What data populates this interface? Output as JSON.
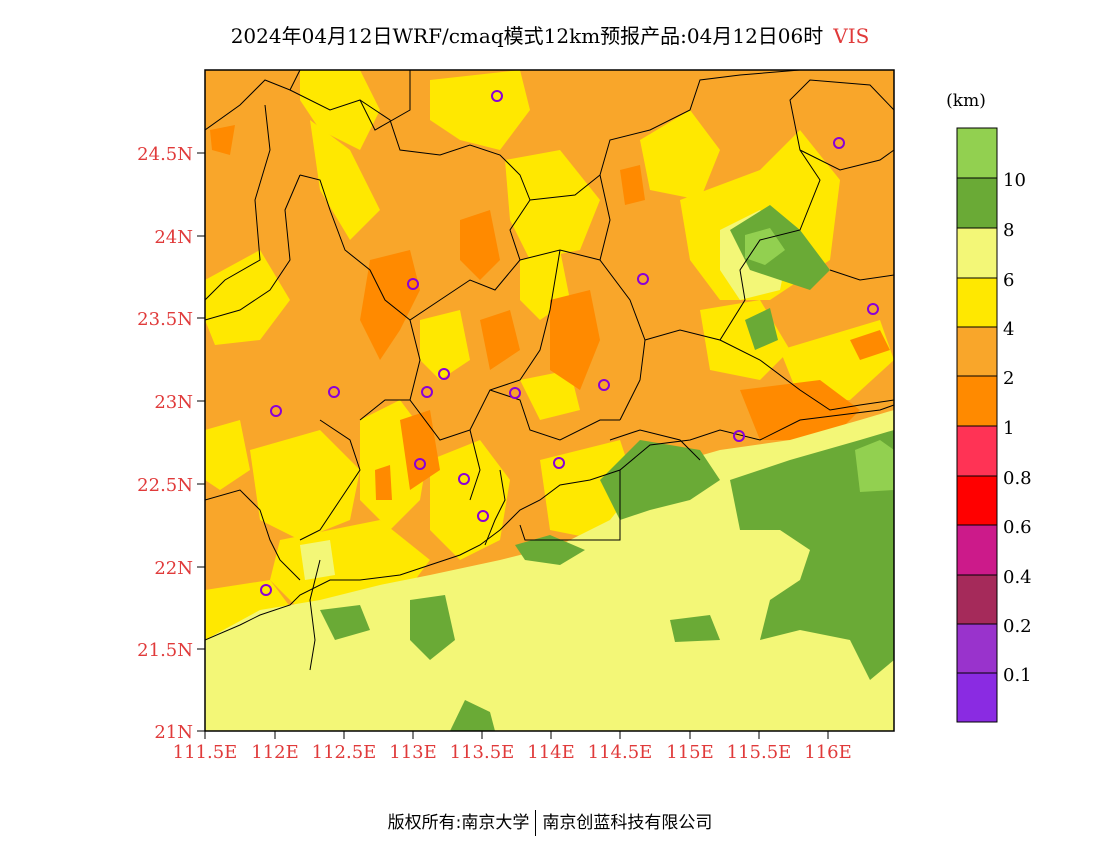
{
  "title": {
    "main": "2024年04月12日WRF/cmaq模式12km预报产品:04月12日06时",
    "variable": "VIS"
  },
  "colors": {
    "axis_label": "#e03a3a",
    "title_variable": "#e03a3a"
  },
  "map": {
    "lat_labels": [
      "24.5N",
      "24N",
      "23.5N",
      "23N",
      "22.5N",
      "22N",
      "21.5N",
      "21N"
    ],
    "lon_labels": [
      "111.5E",
      "112E",
      "112.5E",
      "113E",
      "113.5E",
      "114E",
      "114.5E",
      "115E",
      "115.5E",
      "116E"
    ],
    "stations_count": 17
  },
  "colorbar": {
    "unit": "(km)",
    "labels": [
      "10",
      "8",
      "6",
      "4",
      "2",
      "1",
      "0.8",
      "0.6",
      "0.4",
      "0.2",
      "0.1"
    ],
    "colors": [
      "#92d050",
      "#6aaa36",
      "#f3f777",
      "#ffe800",
      "#f9a62a",
      "#ff8a00",
      "#ff3355",
      "#ff0000",
      "#cc1a8a",
      "#a52a5a",
      "#9933cc",
      "#8a2be2"
    ]
  },
  "footer": {
    "copyright": "版权所有:南京大学",
    "company": "南京创蓝科技有限公司"
  }
}
